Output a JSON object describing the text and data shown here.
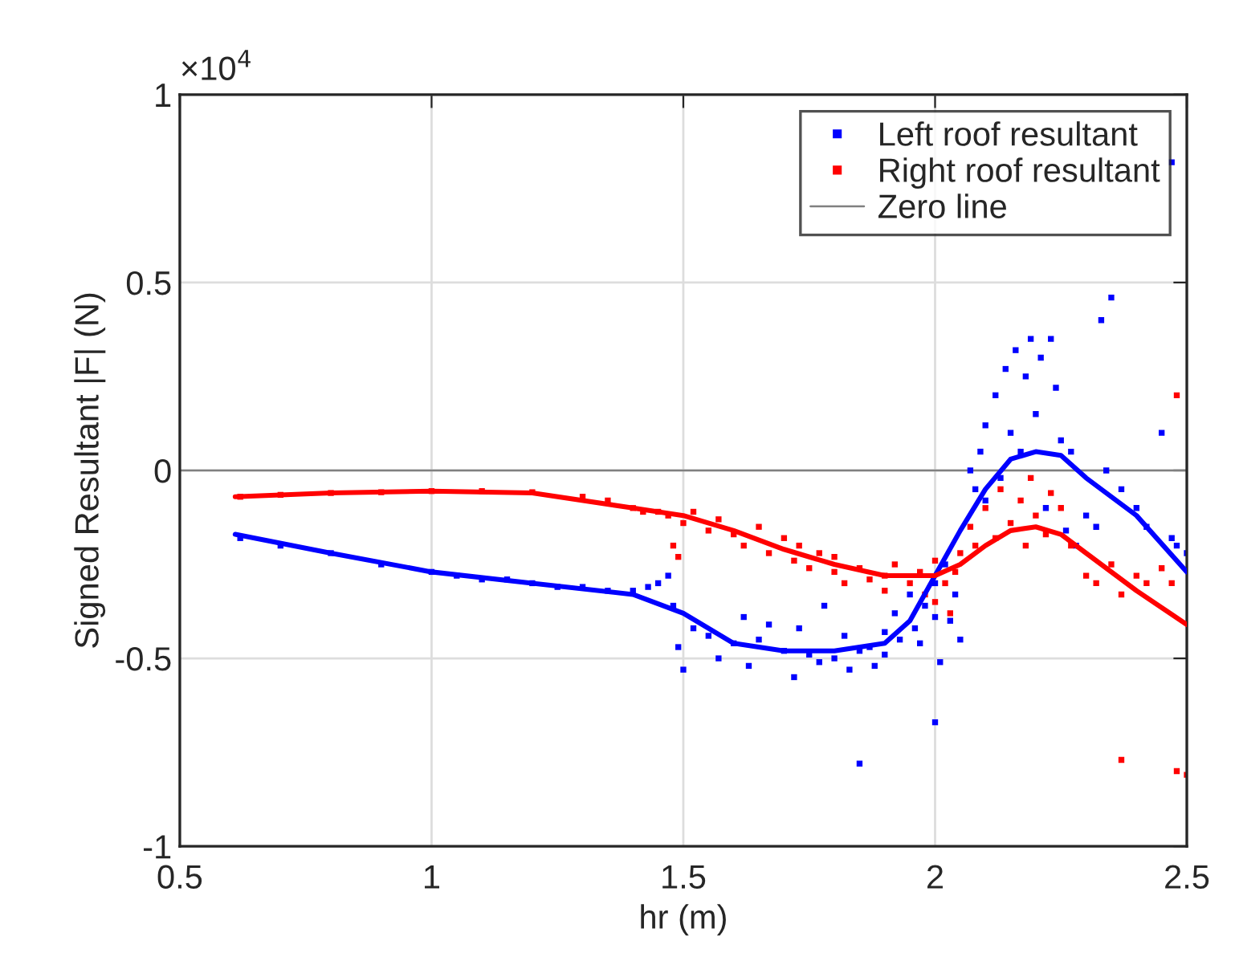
{
  "chart_data": {
    "type": "scatter",
    "xlabel": "hr (m)",
    "ylabel": "Signed Resultant |F| (N)",
    "annotations": [
      "×10$^{4}$"
    ],
    "xlim": [
      0.5,
      2.5
    ],
    "xticks": [
      0.5,
      1,
      1.5,
      2,
      2.5
    ],
    "ylim": [
      -1,
      1
    ],
    "yticks": [
      -1,
      -0.5,
      0,
      0.5,
      1
    ],
    "grid": true,
    "legend": "top right",
    "ref_lines": [
      {
        "axis": "y",
        "value": 0,
        "label": "Zero line",
        "color": "#808080"
      }
    ],
    "series": [
      {
        "name": "Left roof resultant",
        "marker": "square",
        "color": "#0000ff",
        "x": [
          0.62,
          0.7,
          0.8,
          0.9,
          1.0,
          1.05,
          1.1,
          1.15,
          1.2,
          1.25,
          1.3,
          1.35,
          1.4,
          1.43,
          1.45,
          1.47,
          1.48,
          1.49,
          1.5,
          1.52,
          1.55,
          1.57,
          1.6,
          1.62,
          1.63,
          1.65,
          1.67,
          1.7,
          1.72,
          1.73,
          1.75,
          1.77,
          1.78,
          1.8,
          1.82,
          1.83,
          1.85,
          1.87,
          1.88,
          1.9,
          1.9,
          1.92,
          1.93,
          1.95,
          1.96,
          1.97,
          1.98,
          2.0,
          2.0,
          2.01,
          2.02,
          2.03,
          2.04,
          2.05,
          1.85,
          2.0,
          2.07,
          2.08,
          2.09,
          2.1,
          2.1,
          2.12,
          2.13,
          2.14,
          2.15,
          2.16,
          2.17,
          2.18,
          2.19,
          2.2,
          2.21,
          2.22,
          2.23,
          2.24,
          2.25,
          2.26,
          2.27,
          2.28,
          2.3,
          2.32,
          2.33,
          2.34,
          2.35,
          2.37,
          2.4,
          2.42,
          2.45,
          2.47,
          2.48,
          2.5,
          2.47
        ],
        "values": [
          -0.18,
          -0.2,
          -0.22,
          -0.25,
          -0.27,
          -0.28,
          -0.29,
          -0.29,
          -0.3,
          -0.31,
          -0.31,
          -0.32,
          -0.32,
          -0.31,
          -0.3,
          -0.28,
          -0.36,
          -0.47,
          -0.53,
          -0.42,
          -0.44,
          -0.5,
          -0.46,
          -0.39,
          -0.52,
          -0.45,
          -0.41,
          -0.48,
          -0.55,
          -0.42,
          -0.49,
          -0.51,
          -0.36,
          -0.5,
          -0.44,
          -0.53,
          -0.48,
          -0.47,
          -0.52,
          -0.43,
          -0.49,
          -0.38,
          -0.45,
          -0.33,
          -0.42,
          -0.46,
          -0.36,
          -0.3,
          -0.39,
          -0.51,
          -0.25,
          -0.4,
          -0.33,
          -0.45,
          -0.78,
          -0.67,
          0.0,
          -0.05,
          0.05,
          -0.08,
          0.12,
          0.2,
          -0.02,
          0.27,
          0.1,
          0.32,
          0.05,
          0.25,
          0.35,
          0.15,
          0.3,
          -0.1,
          0.35,
          0.22,
          0.08,
          -0.16,
          0.05,
          -0.2,
          -0.12,
          -0.15,
          0.4,
          0.0,
          0.46,
          -0.05,
          -0.1,
          -0.15,
          0.1,
          -0.18,
          -0.2,
          -0.22,
          0.82
        ]
      },
      {
        "name": "Right roof resultant",
        "marker": "square",
        "color": "#ff0000",
        "x": [
          0.62,
          0.7,
          0.8,
          0.9,
          1.0,
          1.1,
          1.2,
          1.3,
          1.35,
          1.4,
          1.42,
          1.45,
          1.47,
          1.48,
          1.49,
          1.5,
          1.52,
          1.55,
          1.57,
          1.6,
          1.62,
          1.65,
          1.67,
          1.7,
          1.72,
          1.73,
          1.75,
          1.77,
          1.8,
          1.8,
          1.82,
          1.85,
          1.87,
          1.9,
          1.9,
          1.92,
          1.95,
          1.97,
          1.98,
          2.0,
          2.0,
          2.02,
          2.03,
          2.04,
          2.05,
          2.07,
          2.08,
          2.1,
          2.12,
          2.13,
          2.15,
          2.17,
          2.18,
          2.19,
          2.2,
          2.22,
          2.23,
          2.25,
          2.27,
          2.3,
          2.32,
          2.35,
          2.37,
          2.4,
          2.42,
          2.45,
          2.47,
          2.48,
          2.37,
          2.48,
          2.5
        ],
        "values": [
          -0.07,
          -0.065,
          -0.06,
          -0.058,
          -0.055,
          -0.055,
          -0.058,
          -0.07,
          -0.08,
          -0.1,
          -0.11,
          -0.11,
          -0.12,
          -0.2,
          -0.23,
          -0.14,
          -0.11,
          -0.16,
          -0.13,
          -0.17,
          -0.2,
          -0.15,
          -0.22,
          -0.18,
          -0.24,
          -0.2,
          -0.26,
          -0.22,
          -0.27,
          -0.23,
          -0.3,
          -0.26,
          -0.29,
          -0.28,
          -0.32,
          -0.25,
          -0.3,
          -0.27,
          -0.33,
          -0.35,
          -0.24,
          -0.3,
          -0.38,
          -0.27,
          -0.22,
          -0.15,
          -0.2,
          -0.1,
          -0.18,
          -0.05,
          -0.14,
          -0.08,
          -0.2,
          -0.02,
          -0.12,
          -0.17,
          -0.06,
          -0.1,
          -0.2,
          -0.28,
          -0.3,
          -0.25,
          -0.33,
          -0.28,
          -0.3,
          -0.26,
          -0.3,
          0.2,
          -0.77,
          -0.8,
          -0.81
        ]
      },
      {
        "type": "line",
        "marker": "none",
        "line_style": "solid",
        "color": "#0000ff",
        "x": [
          0.61,
          0.8,
          1.0,
          1.2,
          1.4,
          1.5,
          1.6,
          1.7,
          1.8,
          1.9,
          1.95,
          2.0,
          2.05,
          2.1,
          2.15,
          2.2,
          2.25,
          2.3,
          2.4,
          2.5
        ],
        "values": [
          -0.17,
          -0.22,
          -0.27,
          -0.3,
          -0.33,
          -0.38,
          -0.46,
          -0.48,
          -0.48,
          -0.46,
          -0.4,
          -0.28,
          -0.16,
          -0.05,
          0.03,
          0.05,
          0.04,
          -0.02,
          -0.12,
          -0.27
        ]
      },
      {
        "type": "line",
        "marker": "none",
        "line_style": "solid",
        "color": "#ff0000",
        "x": [
          0.61,
          0.8,
          1.0,
          1.2,
          1.4,
          1.5,
          1.6,
          1.7,
          1.8,
          1.9,
          2.0,
          2.05,
          2.1,
          2.15,
          2.2,
          2.25,
          2.3,
          2.4,
          2.5
        ],
        "values": [
          -0.07,
          -0.06,
          -0.055,
          -0.06,
          -0.1,
          -0.12,
          -0.16,
          -0.21,
          -0.25,
          -0.28,
          -0.28,
          -0.25,
          -0.2,
          -0.16,
          -0.15,
          -0.17,
          -0.22,
          -0.32,
          -0.41
        ]
      }
    ]
  }
}
